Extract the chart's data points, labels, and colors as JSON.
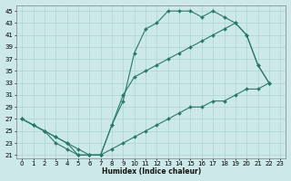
{
  "bg_color": "#cce8e8",
  "line_color": "#2a7a6a",
  "grid_color": "#aad4d4",
  "xlabel": "Humidex (Indice chaleur)",
  "xlim": [
    -0.5,
    23.5
  ],
  "ylim": [
    20.5,
    46
  ],
  "yticks": [
    21,
    23,
    25,
    27,
    29,
    31,
    33,
    35,
    37,
    39,
    41,
    43,
    45
  ],
  "xticks": [
    0,
    1,
    2,
    3,
    4,
    5,
    6,
    7,
    8,
    9,
    10,
    11,
    12,
    13,
    14,
    15,
    16,
    17,
    18,
    19,
    20,
    21,
    22,
    23
  ],
  "line1_x": [
    0,
    1,
    2,
    3,
    4,
    5,
    6,
    7,
    8,
    9,
    10,
    11,
    12,
    13,
    14,
    15,
    16,
    17,
    18,
    19,
    20,
    21,
    22
  ],
  "line1_y": [
    27,
    26,
    25,
    23,
    22,
    21,
    21,
    21,
    26,
    30,
    38,
    42,
    43,
    45,
    45,
    45,
    44,
    45,
    44,
    43,
    41,
    36,
    33
  ],
  "line2_x": [
    0,
    1,
    2,
    3,
    4,
    5,
    6,
    7,
    8,
    9,
    10,
    11,
    12,
    13,
    14,
    15,
    16,
    17,
    18,
    19,
    20,
    21,
    22
  ],
  "line2_y": [
    27,
    26,
    25,
    24,
    23,
    21,
    21,
    21,
    26,
    31,
    34,
    35,
    36,
    37,
    38,
    39,
    40,
    41,
    42,
    43,
    41,
    36,
    33
  ],
  "line3_x": [
    0,
    1,
    2,
    3,
    4,
    5,
    6,
    7,
    8,
    9,
    10,
    11,
    12,
    13,
    14,
    15,
    16,
    17,
    18,
    19,
    20,
    21,
    22
  ],
  "line3_y": [
    27,
    26,
    25,
    24,
    23,
    22,
    21,
    21,
    22,
    23,
    24,
    25,
    26,
    27,
    28,
    29,
    29,
    30,
    30,
    31,
    32,
    32,
    33
  ]
}
